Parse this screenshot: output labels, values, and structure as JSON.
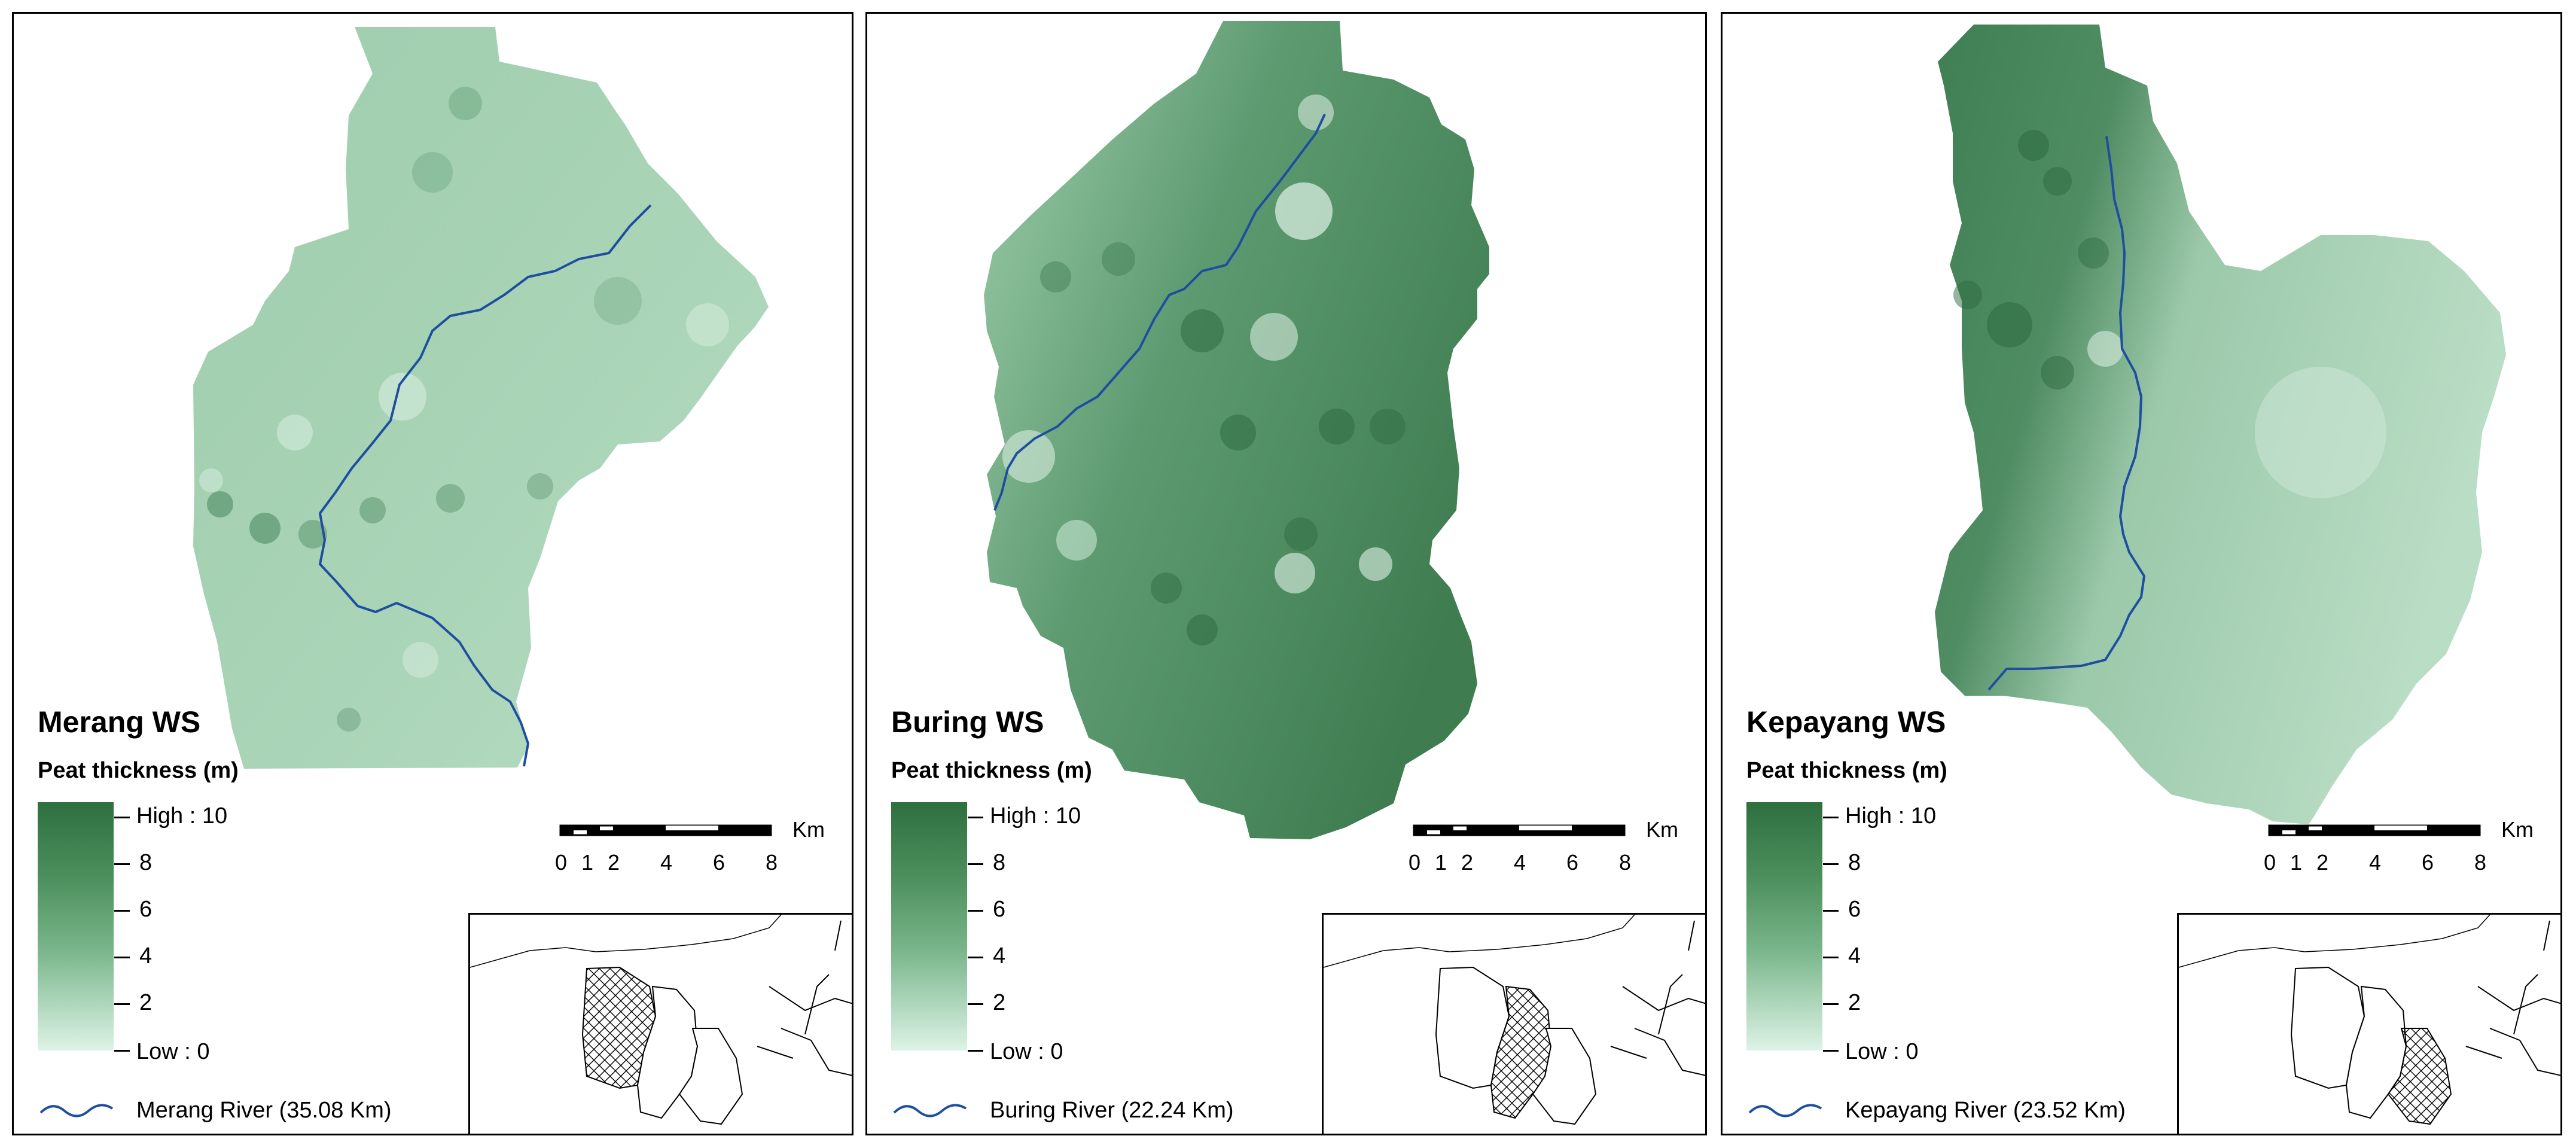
{
  "panels": [
    {
      "title": "Merang WS",
      "legend_title": "Peat thickness (m)",
      "ramp_labels": [
        "High : 10",
        "8",
        "6",
        "4",
        "2",
        "Low : 0"
      ],
      "scale_unit": "Km",
      "scale_ticks": [
        "0",
        "1",
        "2",
        "4",
        "6",
        "8"
      ],
      "river_label": "Merang River (35.08 Km)",
      "highlight": "merang"
    },
    {
      "title": "Buring WS",
      "legend_title": "Peat thickness (m)",
      "ramp_labels": [
        "High : 10",
        "8",
        "6",
        "4",
        "2",
        "Low : 0"
      ],
      "scale_unit": "Km",
      "scale_ticks": [
        "0",
        "1",
        "2",
        "4",
        "6",
        "8"
      ],
      "river_label": "Buring River (22.24 Km)",
      "highlight": "buring"
    },
    {
      "title": "Kepayang WS",
      "legend_title": "Peat thickness (m)",
      "ramp_labels": [
        "High : 10",
        "8",
        "6",
        "4",
        "2",
        "Low : 0"
      ],
      "scale_unit": "Km",
      "scale_ticks": [
        "0",
        "1",
        "2",
        "4",
        "6",
        "8"
      ],
      "river_label": "Kepayang River (23.52 Km)",
      "highlight": "kepayang"
    }
  ],
  "colors": {
    "ramp_high": "#2e6f3f",
    "ramp_low": "#ddf3e6",
    "river": "#1f4ea0"
  }
}
